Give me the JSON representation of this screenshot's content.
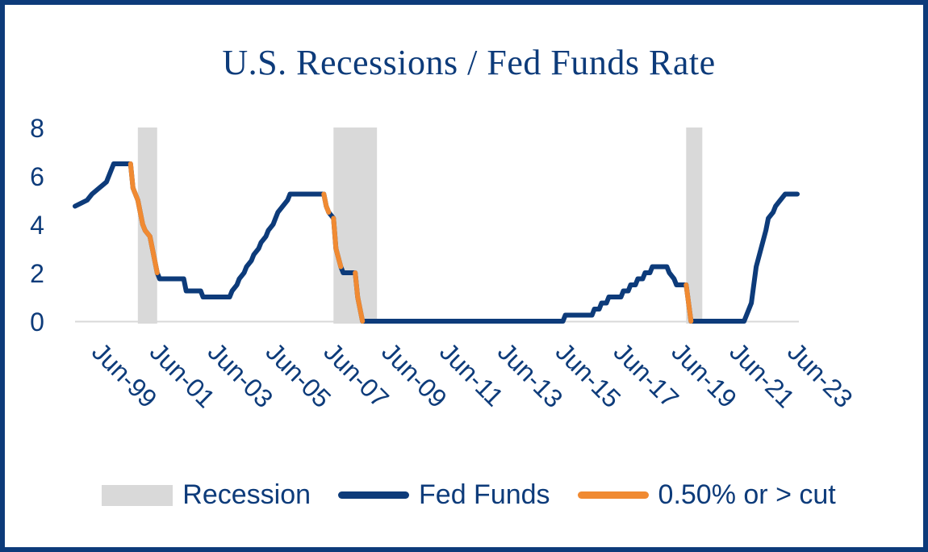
{
  "chart_data": {
    "type": "line",
    "title": "U.S. Recessions / Fed Funds Rate",
    "ylim": [
      0,
      8
    ],
    "yticks": [
      "0",
      "2",
      "4",
      "6",
      "8"
    ],
    "x_tick_labels": [
      "Jun-99",
      "Jun-01",
      "Jun-03",
      "Jun-05",
      "Jun-07",
      "Jun-09",
      "Jun-11",
      "Jun-13",
      "Jun-15",
      "Jun-17",
      "Jun-19",
      "Jun-21",
      "Jun-23"
    ],
    "x_range": [
      "1999-01",
      "2023-12"
    ],
    "grid": false,
    "legend_position": "bottom",
    "recessions": [
      {
        "start": "2001-03",
        "end": "2001-11"
      },
      {
        "start": "2007-12",
        "end": "2009-06"
      },
      {
        "start": "2020-02",
        "end": "2020-04"
      }
    ],
    "series": [
      {
        "name": "Fed Funds",
        "color": "#0d3b7a",
        "points": [
          [
            "1999-01",
            4.75
          ],
          [
            "1999-06",
            5.0
          ],
          [
            "1999-08",
            5.25
          ],
          [
            "1999-11",
            5.5
          ],
          [
            "2000-02",
            5.75
          ],
          [
            "2000-03",
            6.0
          ],
          [
            "2000-05",
            6.5
          ],
          [
            "2000-12",
            6.5
          ],
          [
            "2001-01",
            5.5
          ],
          [
            "2001-03",
            5.0
          ],
          [
            "2001-04",
            4.5
          ],
          [
            "2001-05",
            4.0
          ],
          [
            "2001-06",
            3.75
          ],
          [
            "2001-08",
            3.5
          ],
          [
            "2001-09",
            3.0
          ],
          [
            "2001-10",
            2.5
          ],
          [
            "2001-11",
            2.0
          ],
          [
            "2001-12",
            1.75
          ],
          [
            "2002-10",
            1.75
          ],
          [
            "2002-11",
            1.25
          ],
          [
            "2003-05",
            1.25
          ],
          [
            "2003-06",
            1.0
          ],
          [
            "2004-05",
            1.0
          ],
          [
            "2004-06",
            1.25
          ],
          [
            "2004-08",
            1.5
          ],
          [
            "2004-09",
            1.75
          ],
          [
            "2004-11",
            2.0
          ],
          [
            "2004-12",
            2.25
          ],
          [
            "2005-02",
            2.5
          ],
          [
            "2005-03",
            2.75
          ],
          [
            "2005-05",
            3.0
          ],
          [
            "2005-06",
            3.25
          ],
          [
            "2005-08",
            3.5
          ],
          [
            "2005-09",
            3.75
          ],
          [
            "2005-11",
            4.0
          ],
          [
            "2005-12",
            4.25
          ],
          [
            "2006-01",
            4.5
          ],
          [
            "2006-03",
            4.75
          ],
          [
            "2006-05",
            5.0
          ],
          [
            "2006-06",
            5.25
          ],
          [
            "2007-08",
            5.25
          ],
          [
            "2007-09",
            4.75
          ],
          [
            "2007-10",
            4.5
          ],
          [
            "2007-12",
            4.25
          ],
          [
            "2008-01",
            3.0
          ],
          [
            "2008-03",
            2.25
          ],
          [
            "2008-04",
            2.0
          ],
          [
            "2008-09",
            2.0
          ],
          [
            "2008-10",
            1.0
          ],
          [
            "2008-12",
            0.0
          ],
          [
            "2015-11",
            0.0
          ],
          [
            "2015-12",
            0.25
          ],
          [
            "2016-11",
            0.25
          ],
          [
            "2016-12",
            0.5
          ],
          [
            "2017-02",
            0.5
          ],
          [
            "2017-03",
            0.75
          ],
          [
            "2017-05",
            0.75
          ],
          [
            "2017-06",
            1.0
          ],
          [
            "2017-11",
            1.0
          ],
          [
            "2017-12",
            1.25
          ],
          [
            "2018-02",
            1.25
          ],
          [
            "2018-03",
            1.5
          ],
          [
            "2018-05",
            1.5
          ],
          [
            "2018-06",
            1.75
          ],
          [
            "2018-08",
            1.75
          ],
          [
            "2018-09",
            2.0
          ],
          [
            "2018-11",
            2.0
          ],
          [
            "2018-12",
            2.25
          ],
          [
            "2019-06",
            2.25
          ],
          [
            "2019-07",
            2.0
          ],
          [
            "2019-09",
            1.75
          ],
          [
            "2019-10",
            1.5
          ],
          [
            "2020-02",
            1.5
          ],
          [
            "2020-03",
            0.75
          ],
          [
            "2020-04",
            0.0
          ],
          [
            "2022-02",
            0.0
          ],
          [
            "2022-03",
            0.25
          ],
          [
            "2022-05",
            0.75
          ],
          [
            "2022-06",
            1.5
          ],
          [
            "2022-07",
            2.25
          ],
          [
            "2022-09",
            3.0
          ],
          [
            "2022-11",
            3.75
          ],
          [
            "2022-12",
            4.25
          ],
          [
            "2023-02",
            4.5
          ],
          [
            "2023-03",
            4.75
          ],
          [
            "2023-05",
            5.0
          ],
          [
            "2023-07",
            5.25
          ],
          [
            "2023-12",
            5.25
          ]
        ]
      },
      {
        "name": "0.50% or > cut",
        "color": "#f08a32",
        "segments": [
          {
            "start": "2001-01",
            "end": "2001-11"
          },
          {
            "start": "2007-09",
            "end": "2007-10"
          },
          {
            "start": "2008-01",
            "end": "2008-03"
          },
          {
            "start": "2008-10",
            "end": "2008-12"
          },
          {
            "start": "2020-03",
            "end": "2020-04"
          }
        ]
      }
    ]
  },
  "legend": {
    "recession_label": "Recession",
    "fed_funds_label": "Fed Funds",
    "cut_label": "0.50% or > cut"
  },
  "colors": {
    "navy": "#0d3b7a",
    "orange": "#f08a32",
    "recession_gray": "#d9d9d9",
    "axis_gray": "#d9d9d9"
  }
}
